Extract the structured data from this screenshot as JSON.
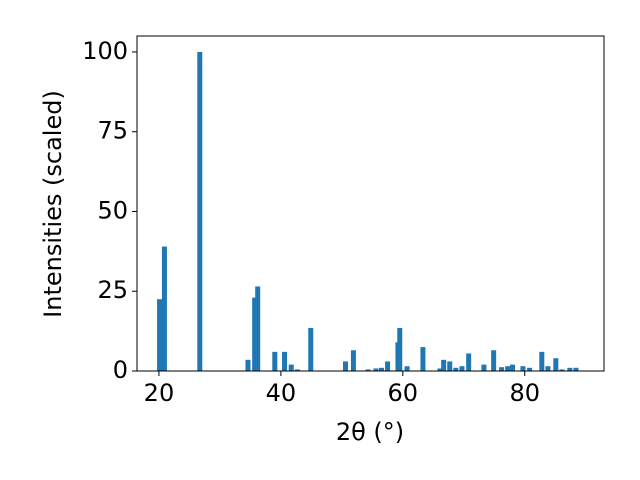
{
  "chart_data": {
    "type": "bar",
    "x_label": "2θ (°)",
    "y_label": "Intensities (scaled)",
    "x": [
      20.1,
      20.9,
      26.7,
      34.6,
      35.7,
      36.2,
      39.0,
      40.6,
      41.7,
      42.7,
      44.9,
      50.6,
      51.9,
      54.3,
      55.6,
      56.5,
      57.5,
      59.2,
      59.5,
      60.7,
      63.3,
      66.1,
      66.7,
      67.7,
      68.7,
      69.7,
      70.8,
      73.3,
      74.9,
      76.2,
      77.2,
      78.0,
      79.7,
      80.8,
      82.8,
      83.8,
      85.1,
      86.1,
      87.4,
      88.4
    ],
    "values": [
      22.5,
      39,
      100,
      3.5,
      23,
      26.5,
      6,
      6,
      2,
      0.5,
      13.5,
      3,
      6.5,
      0.5,
      0.8,
      1,
      3,
      9,
      13.5,
      1.5,
      7.5,
      0.8,
      3.5,
      3,
      1,
      1.5,
      5.5,
      2,
      6.5,
      1.2,
      1.5,
      2,
      1.5,
      1,
      6,
      1.5,
      4,
      0.5,
      1,
      1
    ],
    "color": "#1f77b4",
    "xlim": [
      16.4,
      93.0
    ],
    "ylim": [
      0,
      105
    ],
    "xticks": [
      20,
      40,
      60,
      80
    ],
    "yticks": [
      0,
      25,
      50,
      75,
      100
    ]
  }
}
